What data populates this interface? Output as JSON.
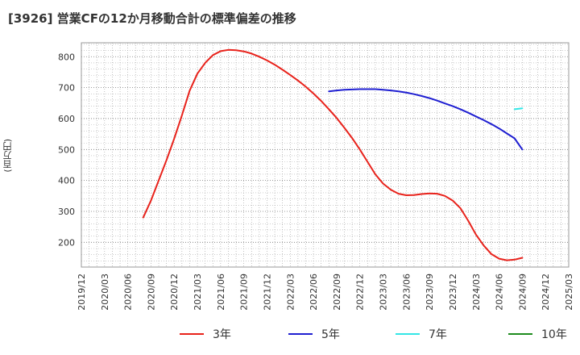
{
  "title": "[3926]  営業CFの12か月移動合計の標準偏差の推移",
  "y_unit_label": "(百万円)",
  "chart_data": {
    "type": "line",
    "title": "[3926]  営業CFの12か月移動合計の標準偏差の推移",
    "ylabel": "(百万円)",
    "xlabel": "",
    "ylim": [
      120,
      845
    ],
    "y_ticks": [
      200,
      300,
      400,
      500,
      600,
      700,
      800
    ],
    "x_tick_labels": [
      "2019/12",
      "2020/03",
      "2020/06",
      "2020/09",
      "2020/12",
      "2021/03",
      "2021/06",
      "2021/09",
      "2021/12",
      "2022/03",
      "2022/06",
      "2022/09",
      "2022/12",
      "2023/03",
      "2023/06",
      "2023/09",
      "2023/12",
      "2024/03",
      "2024/06",
      "2024/09",
      "2024/12",
      "2025/03"
    ],
    "grid": true,
    "legend_position": "bottom",
    "series": [
      {
        "name": "3年",
        "color": "#e8221b",
        "x": [
          "2020/08",
          "2020/09",
          "2020/10",
          "2020/11",
          "2020/12",
          "2021/01",
          "2021/02",
          "2021/03",
          "2021/04",
          "2021/05",
          "2021/06",
          "2021/07",
          "2021/08",
          "2021/09",
          "2021/10",
          "2021/11",
          "2021/12",
          "2022/01",
          "2022/02",
          "2022/03",
          "2022/04",
          "2022/05",
          "2022/06",
          "2022/07",
          "2022/08",
          "2022/09",
          "2022/10",
          "2022/11",
          "2022/12",
          "2023/01",
          "2023/02",
          "2023/03",
          "2023/04",
          "2023/05",
          "2023/06",
          "2023/07",
          "2023/08",
          "2023/09",
          "2023/10",
          "2023/11",
          "2023/12",
          "2024/01",
          "2024/02",
          "2024/03",
          "2024/04",
          "2024/05",
          "2024/06",
          "2024/07",
          "2024/08",
          "2024/09"
        ],
        "values": [
          280,
          335,
          400,
          465,
          535,
          610,
          690,
          745,
          780,
          805,
          818,
          822,
          821,
          817,
          810,
          800,
          788,
          774,
          758,
          741,
          723,
          703,
          681,
          657,
          630,
          602,
          570,
          537,
          500,
          460,
          420,
          390,
          370,
          357,
          352,
          353,
          356,
          358,
          357,
          350,
          335,
          310,
          270,
          225,
          190,
          162,
          147,
          142,
          144,
          150
        ]
      },
      {
        "name": "5年",
        "color": "#1f1fd1",
        "x": [
          "2022/08",
          "2022/09",
          "2022/10",
          "2022/11",
          "2022/12",
          "2023/01",
          "2023/02",
          "2023/03",
          "2023/04",
          "2023/05",
          "2023/06",
          "2023/07",
          "2023/08",
          "2023/09",
          "2023/10",
          "2023/11",
          "2023/12",
          "2024/01",
          "2024/02",
          "2024/03",
          "2024/04",
          "2024/05",
          "2024/06",
          "2024/07",
          "2024/08",
          "2024/09"
        ],
        "values": [
          688,
          691,
          693,
          694,
          695,
          695,
          695,
          693,
          691,
          688,
          684,
          679,
          673,
          666,
          658,
          649,
          640,
          630,
          619,
          607,
          595,
          582,
          568,
          552,
          536,
          500
        ]
      },
      {
        "name": "7年",
        "color": "#33e6e6",
        "x": [
          "2024/08",
          "2024/09"
        ],
        "values": [
          630,
          633
        ]
      },
      {
        "name": "10年",
        "color": "#1e8c1e",
        "x": [],
        "values": []
      }
    ]
  }
}
